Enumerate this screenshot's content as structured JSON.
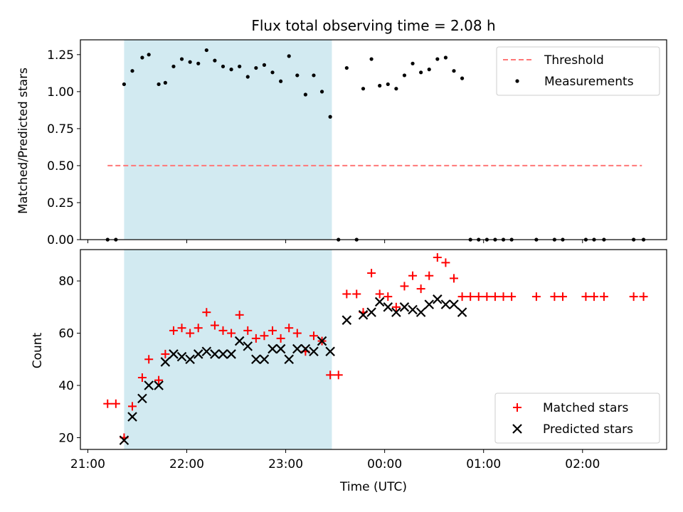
{
  "chart_data": [
    {
      "type": "scatter",
      "title": "Flux total observing time = 2.08 h",
      "xlabel": "",
      "ylabel": "Matched/Predicted stars",
      "ylim": [
        0,
        1.35
      ],
      "yticks": [
        "0.00",
        "0.25",
        "0.50",
        "0.75",
        "1.00",
        "1.25"
      ],
      "shaded_interval": [
        "21:22",
        "23:28"
      ],
      "shade_color": "#add8e6",
      "legend_position": "top-right",
      "threshold": {
        "name": "Threshold",
        "value": 0.5,
        "x_start": "21:12",
        "x_end": "02:36",
        "color": "#ff7777"
      },
      "series": [
        {
          "name": "Measurements",
          "color": "#000000",
          "points": [
            [
              "21:12",
              0.0
            ],
            [
              "21:17",
              0.0
            ],
            [
              "21:22",
              1.05
            ],
            [
              "21:27",
              1.14
            ],
            [
              "21:33",
              1.23
            ],
            [
              "21:37",
              1.25
            ],
            [
              "21:43",
              1.05
            ],
            [
              "21:47",
              1.06
            ],
            [
              "21:52",
              1.17
            ],
            [
              "21:57",
              1.22
            ],
            [
              "22:02",
              1.2
            ],
            [
              "22:07",
              1.19
            ],
            [
              "22:12",
              1.28
            ],
            [
              "22:17",
              1.21
            ],
            [
              "22:22",
              1.17
            ],
            [
              "22:27",
              1.15
            ],
            [
              "22:32",
              1.17
            ],
            [
              "22:37",
              1.1
            ],
            [
              "22:42",
              1.16
            ],
            [
              "22:47",
              1.18
            ],
            [
              "22:52",
              1.13
            ],
            [
              "22:57",
              1.07
            ],
            [
              "23:02",
              1.24
            ],
            [
              "23:07",
              1.11
            ],
            [
              "23:12",
              0.98
            ],
            [
              "23:17",
              1.11
            ],
            [
              "23:22",
              1.0
            ],
            [
              "23:27",
              0.83
            ],
            [
              "23:32",
              0.0
            ],
            [
              "23:37",
              1.16
            ],
            [
              "23:43",
              0.0
            ],
            [
              "23:47",
              1.02
            ],
            [
              "23:52",
              1.22
            ],
            [
              "23:57",
              1.04
            ],
            [
              "00:02",
              1.05
            ],
            [
              "00:07",
              1.02
            ],
            [
              "00:12",
              1.11
            ],
            [
              "00:17",
              1.19
            ],
            [
              "00:22",
              1.13
            ],
            [
              "00:27",
              1.15
            ],
            [
              "00:32",
              1.22
            ],
            [
              "00:37",
              1.23
            ],
            [
              "00:42",
              1.14
            ],
            [
              "00:47",
              1.09
            ],
            [
              "00:52",
              0.0
            ],
            [
              "00:57",
              0.0
            ],
            [
              "01:02",
              0.0
            ],
            [
              "01:07",
              0.0
            ],
            [
              "01:12",
              0.0
            ],
            [
              "01:17",
              0.0
            ],
            [
              "01:32",
              0.0
            ],
            [
              "01:43",
              0.0
            ],
            [
              "01:48",
              0.0
            ],
            [
              "02:02",
              0.0
            ],
            [
              "02:07",
              0.0
            ],
            [
              "02:13",
              0.0
            ],
            [
              "02:31",
              0.0
            ],
            [
              "02:37",
              0.0
            ]
          ]
        }
      ]
    },
    {
      "type": "scatter",
      "title": "",
      "xlabel": "Time (UTC)",
      "ylabel": "Count",
      "ylim": [
        15.5,
        92
      ],
      "yticks": [
        "20",
        "40",
        "60",
        "80"
      ],
      "xticks": [
        "21:00",
        "22:00",
        "23:00",
        "00:00",
        "01:00",
        "02:00"
      ],
      "shaded_interval": [
        "21:22",
        "23:28"
      ],
      "shade_color": "#add8e6",
      "legend_position": "bottom-right",
      "series": [
        {
          "name": "Matched stars",
          "marker": "plus",
          "color": "#ff0000",
          "points": [
            [
              "21:12",
              33
            ],
            [
              "21:17",
              33
            ],
            [
              "21:22",
              20
            ],
            [
              "21:27",
              32
            ],
            [
              "21:33",
              43
            ],
            [
              "21:37",
              50
            ],
            [
              "21:43",
              42
            ],
            [
              "21:47",
              52
            ],
            [
              "21:52",
              61
            ],
            [
              "21:57",
              62
            ],
            [
              "22:02",
              60
            ],
            [
              "22:07",
              62
            ],
            [
              "22:12",
              68
            ],
            [
              "22:17",
              63
            ],
            [
              "22:22",
              61
            ],
            [
              "22:27",
              60
            ],
            [
              "22:32",
              67
            ],
            [
              "22:37",
              61
            ],
            [
              "22:42",
              58
            ],
            [
              "22:47",
              59
            ],
            [
              "22:52",
              61
            ],
            [
              "22:57",
              58
            ],
            [
              "23:02",
              62
            ],
            [
              "23:07",
              60
            ],
            [
              "23:12",
              53
            ],
            [
              "23:17",
              59
            ],
            [
              "23:22",
              57
            ],
            [
              "23:27",
              44
            ],
            [
              "23:32",
              44
            ],
            [
              "23:37",
              75
            ],
            [
              "23:43",
              75
            ],
            [
              "23:47",
              68
            ],
            [
              "23:52",
              83
            ],
            [
              "23:57",
              75
            ],
            [
              "00:02",
              74
            ],
            [
              "00:07",
              70
            ],
            [
              "00:12",
              78
            ],
            [
              "00:17",
              82
            ],
            [
              "00:22",
              77
            ],
            [
              "00:27",
              82
            ],
            [
              "00:32",
              89
            ],
            [
              "00:37",
              87
            ],
            [
              "00:42",
              81
            ],
            [
              "00:47",
              74
            ],
            [
              "00:52",
              74
            ],
            [
              "00:57",
              74
            ],
            [
              "01:02",
              74
            ],
            [
              "01:07",
              74
            ],
            [
              "01:12",
              74
            ],
            [
              "01:17",
              74
            ],
            [
              "01:32",
              74
            ],
            [
              "01:43",
              74
            ],
            [
              "01:48",
              74
            ],
            [
              "02:02",
              74
            ],
            [
              "02:07",
              74
            ],
            [
              "02:13",
              74
            ],
            [
              "02:31",
              74
            ],
            [
              "02:37",
              74
            ]
          ]
        },
        {
          "name": "Predicted stars",
          "marker": "x",
          "color": "#000000",
          "points": [
            [
              "21:22",
              19
            ],
            [
              "21:27",
              28
            ],
            [
              "21:33",
              35
            ],
            [
              "21:37",
              40
            ],
            [
              "21:43",
              40
            ],
            [
              "21:47",
              49
            ],
            [
              "21:52",
              52
            ],
            [
              "21:57",
              51
            ],
            [
              "22:02",
              50
            ],
            [
              "22:07",
              52
            ],
            [
              "22:12",
              53
            ],
            [
              "22:17",
              52
            ],
            [
              "22:22",
              52
            ],
            [
              "22:27",
              52
            ],
            [
              "22:32",
              57
            ],
            [
              "22:37",
              55
            ],
            [
              "22:42",
              50
            ],
            [
              "22:47",
              50
            ],
            [
              "22:52",
              54
            ],
            [
              "22:57",
              54
            ],
            [
              "23:02",
              50
            ],
            [
              "23:07",
              54
            ],
            [
              "23:12",
              54
            ],
            [
              "23:17",
              53
            ],
            [
              "23:22",
              57
            ],
            [
              "23:27",
              53
            ],
            [
              "23:37",
              65
            ],
            [
              "23:47",
              67
            ],
            [
              "23:52",
              68
            ],
            [
              "23:57",
              72
            ],
            [
              "00:02",
              70
            ],
            [
              "00:07",
              68
            ],
            [
              "00:12",
              70
            ],
            [
              "00:17",
              69
            ],
            [
              "00:22",
              68
            ],
            [
              "00:27",
              71
            ],
            [
              "00:32",
              73
            ],
            [
              "00:37",
              71
            ],
            [
              "00:42",
              71
            ],
            [
              "00:47",
              68
            ]
          ]
        }
      ]
    }
  ]
}
